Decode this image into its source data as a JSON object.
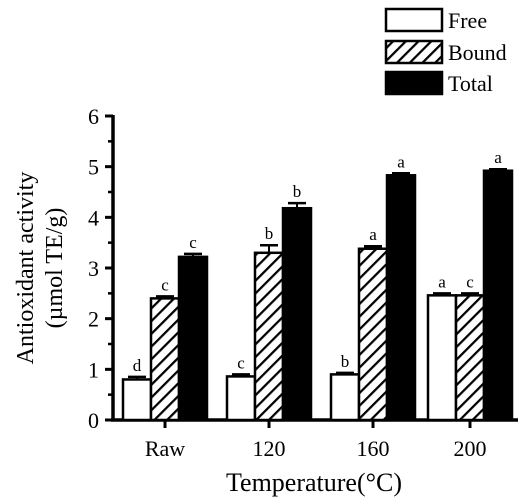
{
  "chart_data": {
    "type": "bar",
    "categories": [
      "Raw",
      "120",
      "160",
      "200"
    ],
    "series": [
      {
        "name": "Free",
        "values": [
          0.8,
          0.86,
          0.9,
          2.46
        ],
        "errors": [
          0.05,
          0.04,
          0.03,
          0.04
        ],
        "letters": [
          "d",
          "c",
          "b",
          "a"
        ],
        "fill": "#ffffff",
        "pattern": "none"
      },
      {
        "name": "Bound",
        "values": [
          2.4,
          3.3,
          3.38,
          2.46
        ],
        "errors": [
          0.04,
          0.15,
          0.05,
          0.04
        ],
        "letters": [
          "c",
          "b",
          "a",
          "c"
        ],
        "fill": "#ffffff",
        "pattern": "hatch"
      },
      {
        "name": "Total",
        "values": [
          3.22,
          4.18,
          4.83,
          4.92
        ],
        "errors": [
          0.06,
          0.1,
          0.04,
          0.03
        ],
        "letters": [
          "c",
          "b",
          "a",
          "a"
        ],
        "fill": "#000000",
        "pattern": "none"
      }
    ],
    "xlabel": "Temperature(°C)",
    "ylabel_line1": "Antioxidant activity",
    "ylabel_line2": "(µmol TE/g)",
    "ylim": [
      0,
      6
    ],
    "yticks": [
      "0",
      "1",
      "2",
      "3",
      "4",
      "5",
      "6"
    ],
    "legend_position": "top-right",
    "grid": false
  }
}
